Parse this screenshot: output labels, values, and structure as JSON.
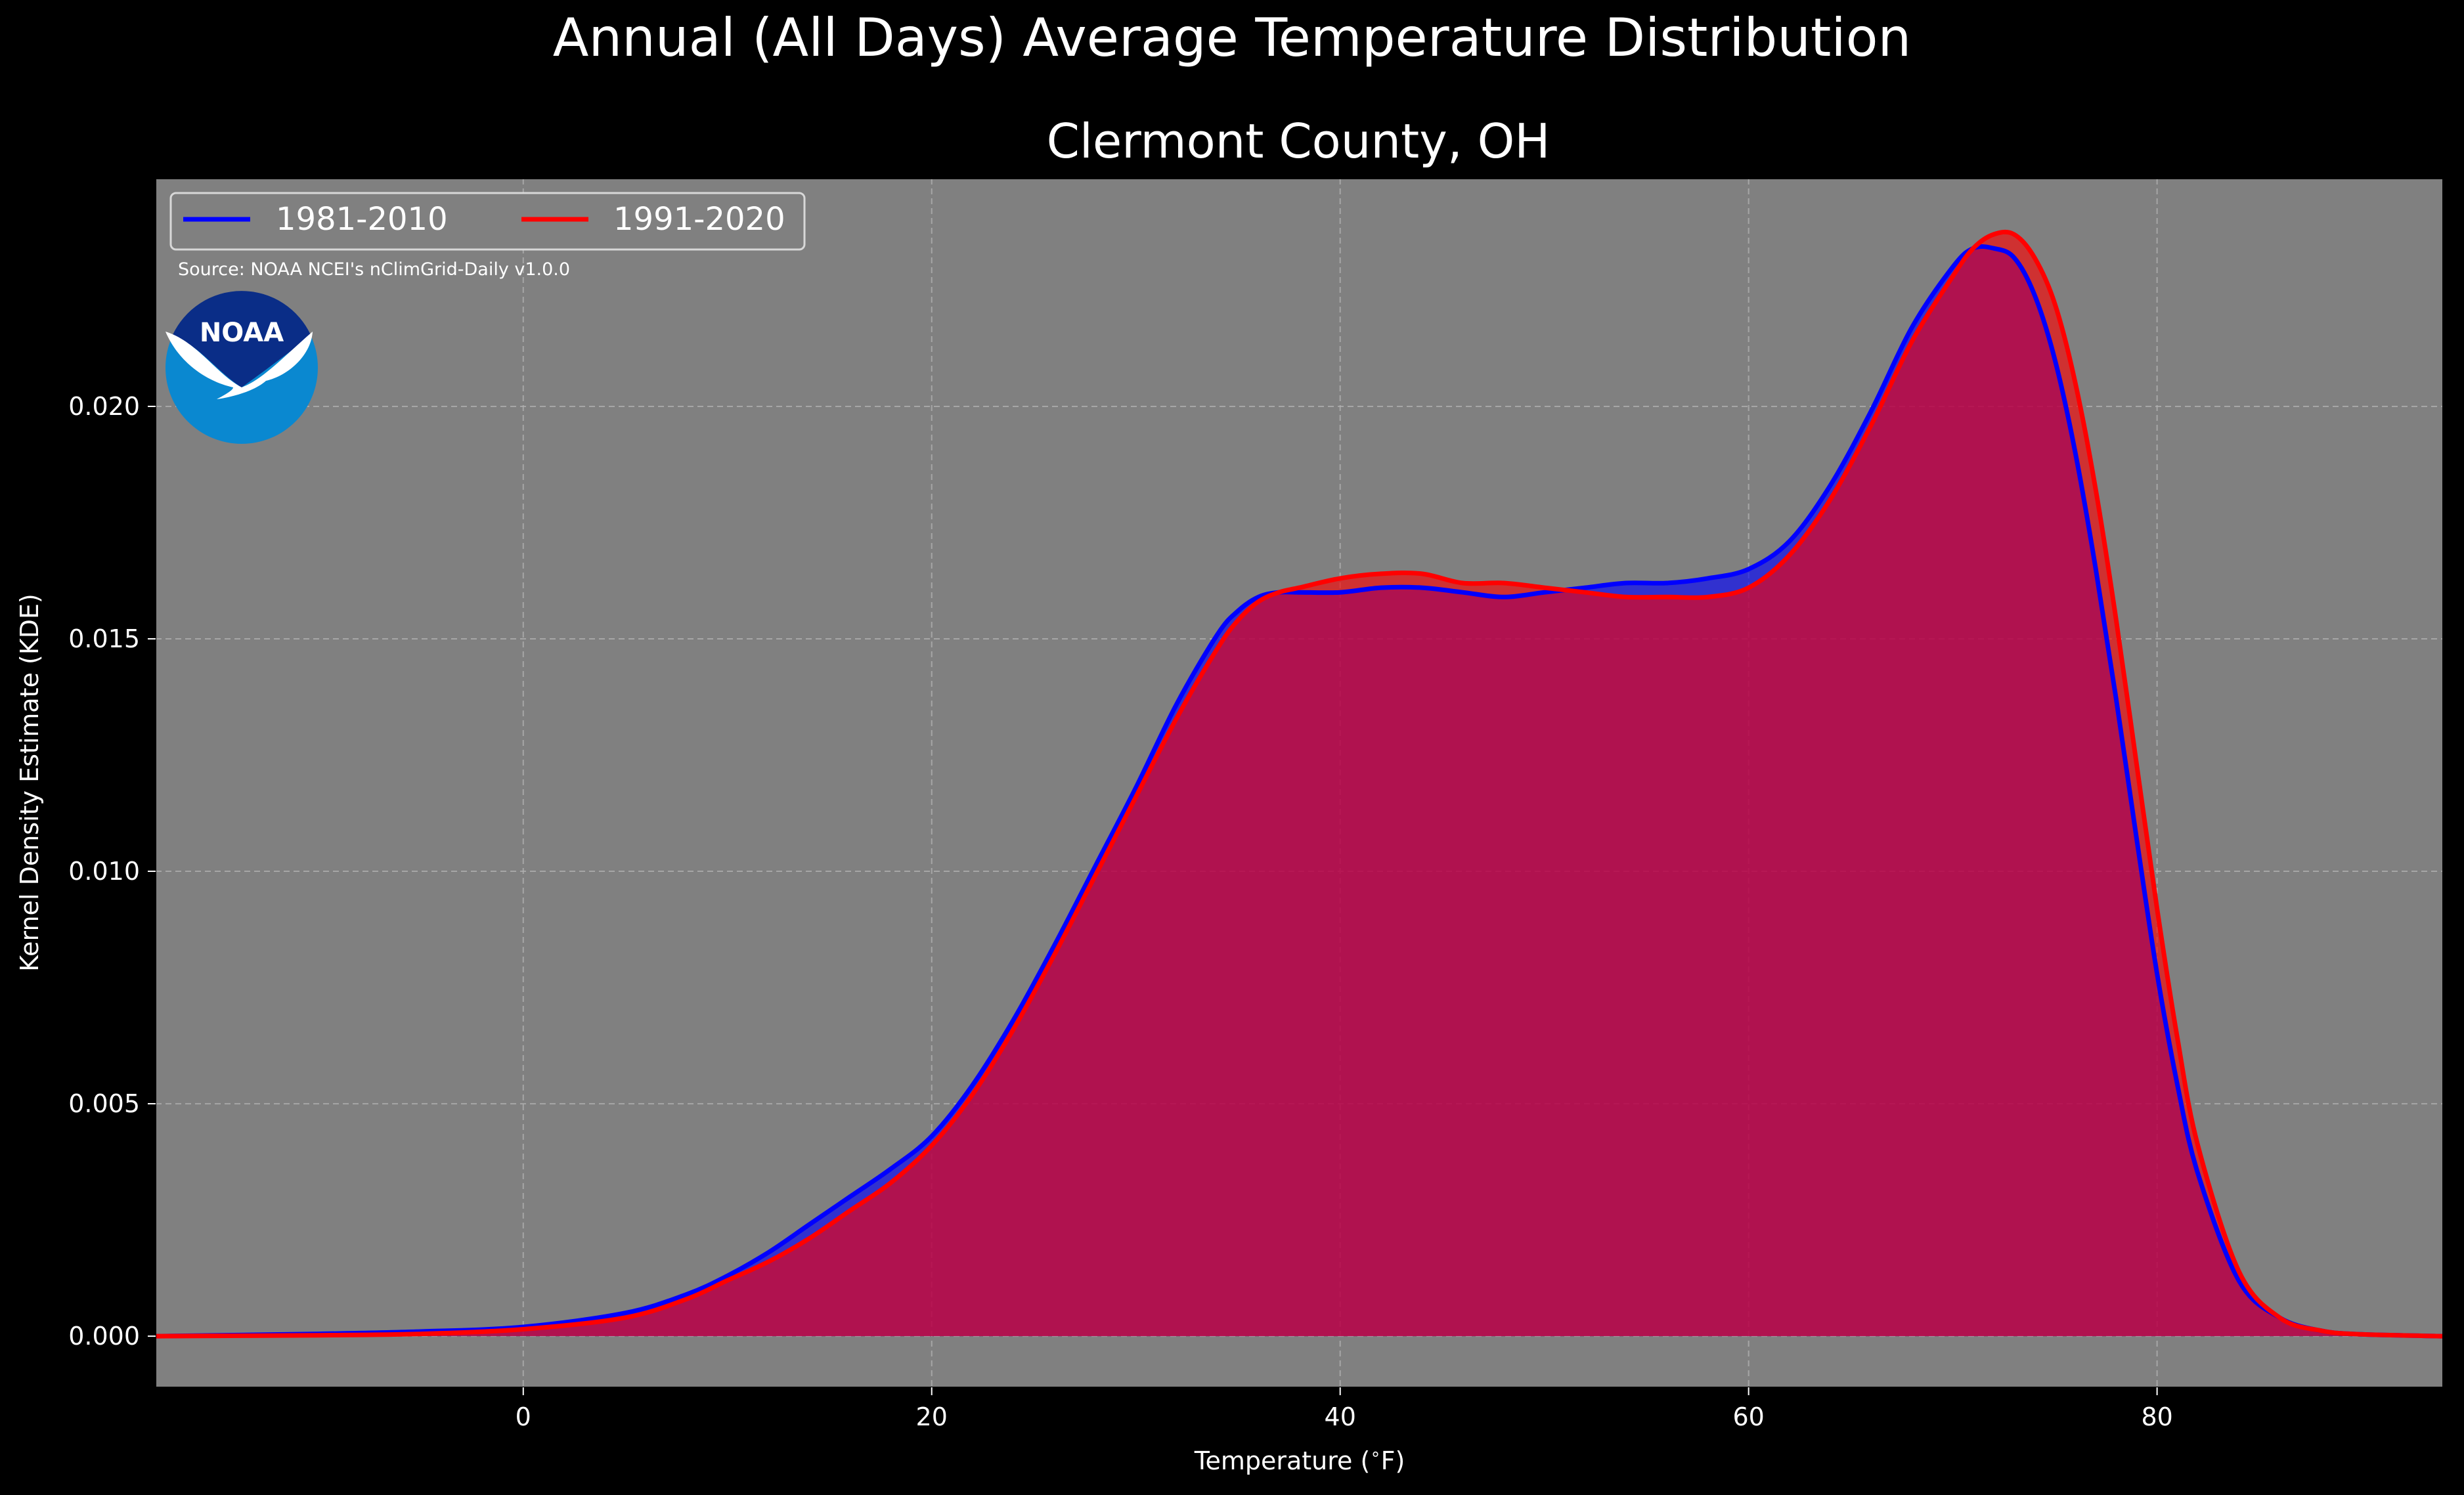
{
  "chart_data": {
    "type": "area",
    "title": "Annual (All Days) Average Temperature Distribution",
    "subtitle": "Clermont County, OH",
    "xlabel": "Temperature ($^\\circ$F)",
    "ylabel": "Kernel Density Estimate (KDE)",
    "xlim": [
      -18,
      94
    ],
    "ylim": [
      -0.0011,
      0.0249
    ],
    "xticks": [
      0,
      20,
      40,
      60,
      80
    ],
    "yticks": [
      0.0,
      0.005,
      0.01,
      0.015,
      0.02
    ],
    "xtick_labels": [
      "0",
      "20",
      "40",
      "60",
      "80"
    ],
    "ytick_labels": [
      "0.000",
      "0.005",
      "0.010",
      "0.015",
      "0.020"
    ],
    "grid": true,
    "legend_placement": "top-left",
    "source_note": "Source: NOAA NCEI's nClimGrid-Daily v1.0.0",
    "logo_text": "NOAA",
    "colors": {
      "figure_bg": "#000000",
      "axes_bg": "#808080",
      "text": "#ffffff",
      "grid": "#b0b0b0",
      "series_1981": "#0000ff",
      "series_1991": "#ff0000",
      "fill_overlap": "#9e1f5c",
      "logo_dark": "#0a2d87",
      "logo_light": "#0a88d0"
    },
    "series": [
      {
        "name": "1981-2010",
        "color": "#0000ff",
        "x": [
          -18,
          -10,
          -5,
          0,
          5,
          8,
          10,
          12,
          14,
          16,
          18,
          20,
          22,
          24,
          26,
          28,
          30,
          32,
          34,
          35,
          36,
          37,
          38,
          40,
          42,
          44,
          46,
          48,
          50,
          52,
          54,
          56,
          58,
          60,
          62,
          64,
          66,
          68,
          70,
          71,
          72,
          73,
          74,
          75,
          76,
          77,
          78,
          79,
          80,
          81,
          82,
          84,
          86,
          88,
          90,
          94
        ],
        "y": [
          0.0,
          5e-05,
          0.0001,
          0.0002,
          0.0005,
          0.0009,
          0.0013,
          0.0018,
          0.0024,
          0.003,
          0.0036,
          0.0043,
          0.0054,
          0.0068,
          0.0084,
          0.0101,
          0.0118,
          0.0136,
          0.0151,
          0.0156,
          0.0159,
          0.016,
          0.016,
          0.016,
          0.0161,
          0.0161,
          0.016,
          0.0159,
          0.016,
          0.0161,
          0.0162,
          0.0162,
          0.0163,
          0.0165,
          0.0171,
          0.0183,
          0.0199,
          0.0217,
          0.023,
          0.0234,
          0.0234,
          0.0232,
          0.0224,
          0.021,
          0.019,
          0.0165,
          0.0137,
          0.0107,
          0.0078,
          0.0054,
          0.0035,
          0.0012,
          0.0004,
          0.00012,
          4e-05,
          0.0
        ]
      },
      {
        "name": "1991-2020",
        "color": "#ff0000",
        "x": [
          -18,
          -10,
          -5,
          0,
          5,
          8,
          10,
          12,
          14,
          16,
          18,
          20,
          22,
          24,
          26,
          28,
          30,
          32,
          34,
          35,
          36,
          37,
          38,
          40,
          42,
          44,
          46,
          48,
          50,
          52,
          54,
          56,
          58,
          60,
          62,
          64,
          66,
          68,
          70,
          71,
          72,
          73,
          74,
          75,
          76,
          77,
          78,
          79,
          80,
          81,
          82,
          84,
          86,
          88,
          90,
          94
        ],
        "y": [
          0.0,
          2e-05,
          5e-05,
          0.00015,
          0.0004,
          0.0008,
          0.0012,
          0.0016,
          0.0021,
          0.0027,
          0.0033,
          0.0041,
          0.0052,
          0.0066,
          0.0082,
          0.0099,
          0.0116,
          0.0133,
          0.0148,
          0.0154,
          0.0158,
          0.016,
          0.0161,
          0.0163,
          0.0164,
          0.0164,
          0.0162,
          0.0162,
          0.0161,
          0.016,
          0.0159,
          0.0159,
          0.0159,
          0.0161,
          0.0168,
          0.018,
          0.0196,
          0.0214,
          0.0228,
          0.0234,
          0.0237,
          0.0237,
          0.0232,
          0.0222,
          0.0205,
          0.0182,
          0.0154,
          0.0123,
          0.0092,
          0.0064,
          0.0041,
          0.0014,
          0.0004,
          0.00012,
          4e-05,
          0.0
        ]
      }
    ]
  }
}
